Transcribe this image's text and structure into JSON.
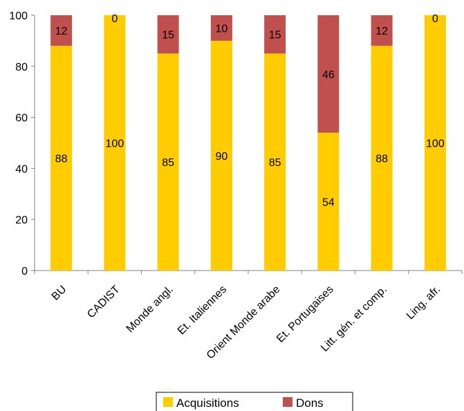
{
  "chart_data": {
    "type": "bar",
    "stacked": true,
    "categories": [
      "BU",
      "CADIST",
      "Monde angl.",
      "Et. Italiennes",
      "Orient Monde arabe",
      "Et. Portugaises",
      "Litt. gén. et comp.",
      "Ling. afr."
    ],
    "series": [
      {
        "name": "Acquisitions",
        "values": [
          88,
          100,
          85,
          90,
          85,
          54,
          88,
          100
        ],
        "color": "#FFCC00"
      },
      {
        "name": "Dons",
        "values": [
          12,
          0,
          15,
          10,
          15,
          46,
          12,
          0
        ],
        "color": "#C0504D"
      }
    ],
    "ylim": [
      0,
      100
    ],
    "yticks": [
      0,
      20,
      40,
      60,
      80,
      100
    ],
    "title": "",
    "xlabel": "",
    "ylabel": "",
    "grid": false,
    "legend": "bottom"
  }
}
